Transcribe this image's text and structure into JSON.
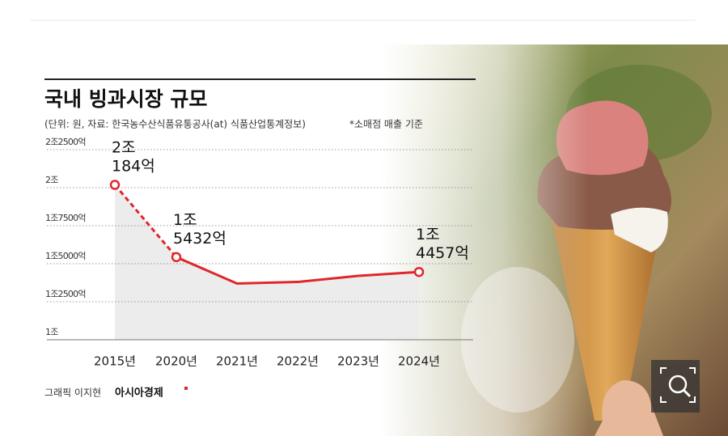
{
  "chart_data": {
    "type": "line",
    "title": "국내 빙과시장 규모",
    "subtitle": "(단위: 원, 자료: 한국농수산식품유통공사(at) 식품산업통계정보)",
    "note": "*소매점 매출 기준",
    "credit": "그래픽 이지현",
    "source": "아시아경제",
    "categories": [
      "2015년",
      "2020년",
      "2021년",
      "2022년",
      "2023년",
      "2024년"
    ],
    "values": [
      20184,
      15432,
      13700,
      13800,
      14200,
      14457
    ],
    "value_labels": [
      "2조\n184억",
      "1조\n5432억",
      null,
      null,
      null,
      "1조\n4457억"
    ],
    "color": "#e0262b",
    "area_color": "#ececec",
    "dashed_first_segment": true,
    "ylim": [
      10000,
      22500
    ],
    "yticks": [
      {
        "value": 10000,
        "label": "1조"
      },
      {
        "value": 12500,
        "label": "1조2500억"
      },
      {
        "value": 15000,
        "label": "1조5000억"
      },
      {
        "value": 17500,
        "label": "1조7500억"
      },
      {
        "value": 20000,
        "label": "2조"
      },
      {
        "value": 22500,
        "label": "2조2500억"
      }
    ],
    "grid": true
  }
}
